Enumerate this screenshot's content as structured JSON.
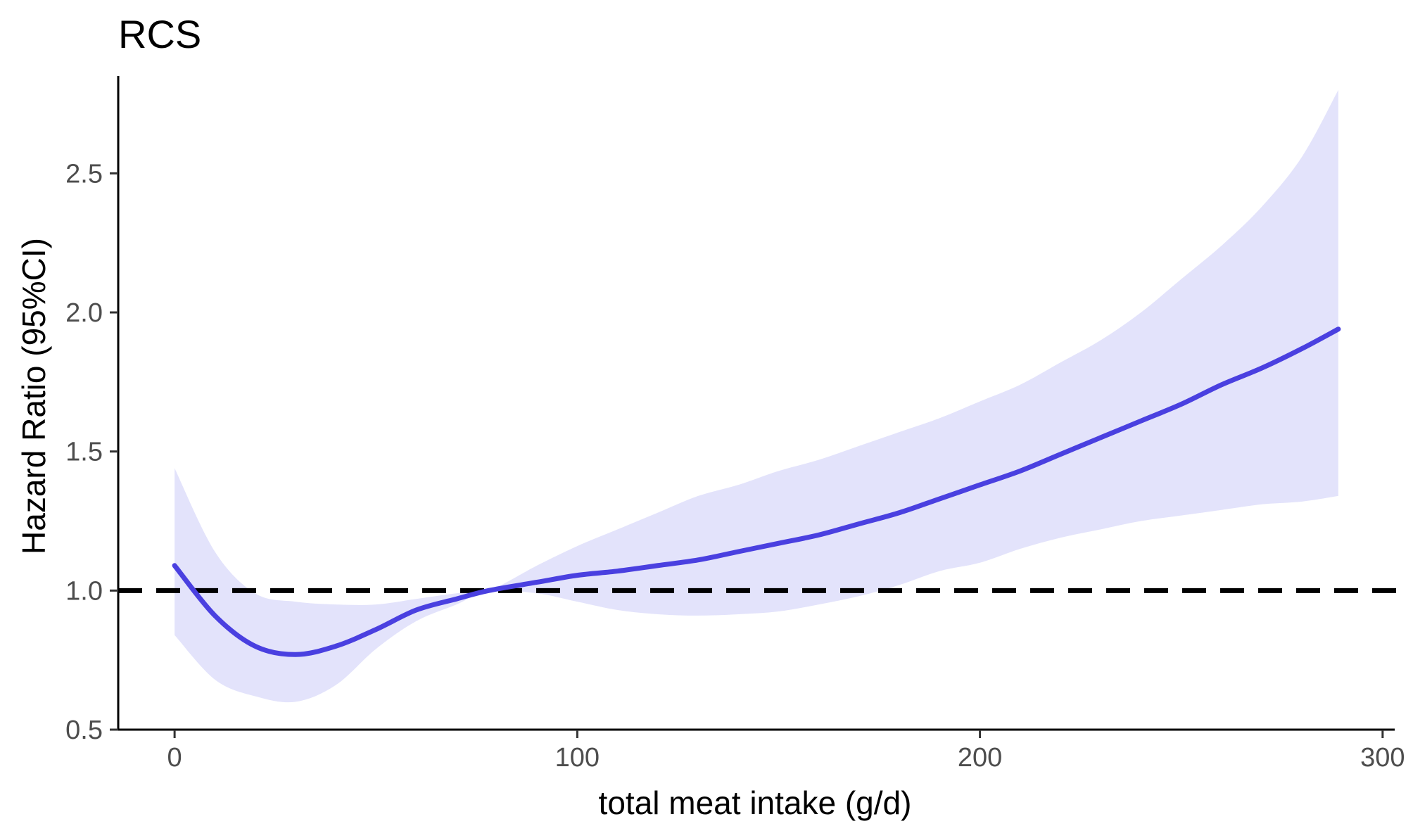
{
  "chart_data": {
    "type": "line",
    "title": "RCS",
    "xlabel": "total meat intake (g/d)",
    "ylabel": "Hazard Ratio (95%CI)",
    "xlim": [
      -14,
      303
    ],
    "ylim": [
      0.5,
      2.85
    ],
    "x_ticks": [
      0,
      100,
      200,
      300
    ],
    "y_ticks": [
      0.5,
      1.0,
      1.5,
      2.0,
      2.5
    ],
    "x_tick_labels": [
      "0",
      "100",
      "200",
      "300"
    ],
    "y_tick_labels": [
      "0.5",
      "1.0",
      "1.5",
      "2.0",
      "2.5"
    ],
    "reference_line": {
      "y": 1.0,
      "style": "dashed"
    },
    "colors": {
      "line": "#4a40e0",
      "band": "#e3e3fb",
      "axis": "#000000",
      "reference": "#000000"
    },
    "series": [
      {
        "name": "Hazard Ratio",
        "x": [
          0,
          10,
          20,
          30,
          40,
          50,
          60,
          70,
          78,
          90,
          100,
          110,
          120,
          130,
          140,
          150,
          160,
          170,
          180,
          190,
          200,
          210,
          220,
          230,
          240,
          250,
          260,
          270,
          280,
          289
        ],
        "y": [
          1.09,
          0.91,
          0.8,
          0.77,
          0.8,
          0.86,
          0.93,
          0.97,
          1.0,
          1.03,
          1.055,
          1.07,
          1.09,
          1.11,
          1.14,
          1.17,
          1.2,
          1.24,
          1.28,
          1.33,
          1.38,
          1.43,
          1.49,
          1.55,
          1.61,
          1.67,
          1.74,
          1.8,
          1.87,
          1.94
        ],
        "lower": [
          0.84,
          0.68,
          0.62,
          0.6,
          0.66,
          0.79,
          0.89,
          0.95,
          1.0,
          0.99,
          0.96,
          0.93,
          0.915,
          0.91,
          0.915,
          0.925,
          0.95,
          0.98,
          1.02,
          1.07,
          1.1,
          1.15,
          1.19,
          1.22,
          1.25,
          1.27,
          1.29,
          1.31,
          1.32,
          1.34
        ],
        "upper": [
          1.44,
          1.14,
          0.99,
          0.96,
          0.95,
          0.95,
          0.97,
          0.99,
          1.0,
          1.09,
          1.16,
          1.22,
          1.28,
          1.34,
          1.38,
          1.43,
          1.47,
          1.52,
          1.57,
          1.62,
          1.68,
          1.74,
          1.82,
          1.9,
          2.0,
          2.12,
          2.24,
          2.38,
          2.56,
          2.8
        ]
      }
    ]
  }
}
